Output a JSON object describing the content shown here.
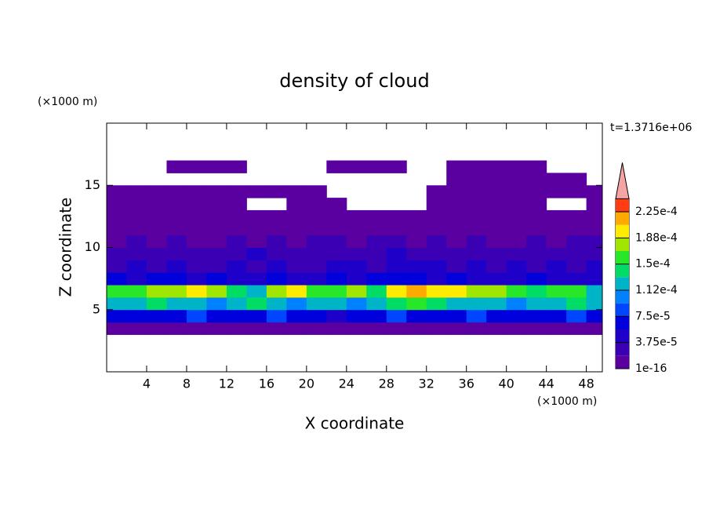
{
  "chart_data": {
    "type": "contour",
    "title": "density of cloud",
    "time_label": "t=1.3716e+06",
    "x_label": "X coordinate",
    "y_label": "Z coordinate",
    "x_unit": "(×1000 m)",
    "y_unit": "(×1000 m)",
    "xlim": [
      0,
      49.6
    ],
    "ylim": [
      0,
      20
    ],
    "xticks": [
      4,
      8,
      12,
      16,
      20,
      24,
      28,
      32,
      36,
      40,
      44,
      48
    ],
    "yticks": [
      5,
      10,
      15
    ],
    "x_edges": [
      0,
      2,
      4,
      6,
      8,
      10,
      12,
      14,
      16,
      18,
      20,
      22,
      24,
      26,
      28,
      30,
      32,
      34,
      36,
      38,
      40,
      42,
      44,
      46,
      48,
      50
    ],
    "z_edges": [
      3,
      4,
      5,
      6,
      7,
      8,
      9,
      10,
      11,
      12,
      13,
      14,
      15,
      16,
      17
    ],
    "values": [
      [
        1e-05,
        1e-05,
        1e-05,
        1e-05,
        1e-05,
        1e-05,
        1e-05,
        1e-05,
        1e-05,
        1e-05,
        1e-05,
        1e-05,
        1e-05,
        1e-05,
        1e-05,
        1e-05,
        1e-05,
        1e-05,
        1e-05,
        1e-05,
        1e-05,
        1e-05,
        1e-05,
        1e-05,
        1e-05
      ],
      [
        7e-05,
        6e-05,
        7e-05,
        6e-05,
        8e-05,
        7e-05,
        6e-05,
        7e-05,
        8e-05,
        6e-05,
        7e-05,
        5e-05,
        6e-05,
        7e-05,
        8e-05,
        7e-05,
        6e-05,
        7e-05,
        8e-05,
        6e-05,
        7e-05,
        6e-05,
        7e-05,
        8e-05,
        7e-05
      ],
      [
        0.00013,
        0.00012,
        0.00014,
        0.00013,
        0.00012,
        0.00011,
        0.00013,
        0.00014,
        0.00012,
        0.00011,
        0.00013,
        0.00012,
        0.00011,
        0.00013,
        0.00014,
        0.00015,
        0.00014,
        0.00013,
        0.00012,
        0.00013,
        0.00011,
        0.00012,
        0.00013,
        0.00014,
        0.00012
      ],
      [
        0.00016,
        0.00015,
        0.00017,
        0.00018,
        0.00019,
        0.00017,
        0.00014,
        0.00013,
        0.00017,
        0.00019,
        0.00015,
        0.00016,
        0.00018,
        0.00014,
        0.00019,
        0.00022,
        0.0002,
        0.00019,
        0.00017,
        0.00018,
        0.00015,
        0.00014,
        0.00016,
        0.00015,
        0.00013
      ],
      [
        6e-05,
        5e-05,
        7e-05,
        6e-05,
        5e-05,
        6e-05,
        4e-05,
        5e-05,
        6e-05,
        5e-05,
        4e-05,
        6e-05,
        5e-05,
        6e-05,
        7e-05,
        6e-05,
        5e-05,
        6e-05,
        5e-05,
        4e-05,
        5e-05,
        6e-05,
        5e-05,
        4e-05,
        5e-05
      ],
      [
        3e-05,
        4e-05,
        3e-05,
        4e-05,
        3e-05,
        3e-05,
        4e-05,
        3e-05,
        4e-05,
        3e-05,
        3e-05,
        4e-05,
        4e-05,
        3e-05,
        4e-05,
        5e-05,
        4e-05,
        3e-05,
        4e-05,
        3e-05,
        4e-05,
        3e-05,
        4e-05,
        3e-05,
        4e-05
      ],
      [
        2e-05,
        3e-05,
        2e-05,
        3e-05,
        3e-05,
        2e-05,
        3e-05,
        4e-05,
        3e-05,
        2e-05,
        3e-05,
        3e-05,
        2e-05,
        3e-05,
        4e-05,
        3e-05,
        3e-05,
        2e-05,
        3e-05,
        3e-05,
        2e-05,
        3e-05,
        2e-05,
        3e-05,
        3e-05
      ],
      [
        1.5e-05,
        2e-05,
        1.5e-05,
        2e-05,
        1.5e-05,
        1.5e-05,
        2e-05,
        1.5e-05,
        2e-05,
        1.5e-05,
        2e-05,
        2e-05,
        1.5e-05,
        2e-05,
        2e-05,
        1.5e-05,
        2e-05,
        1.5e-05,
        2e-05,
        1.5e-05,
        1.5e-05,
        2e-05,
        1.5e-05,
        2e-05,
        2e-05
      ],
      [
        1e-05,
        1e-05,
        1e-05,
        1e-05,
        1e-05,
        1e-05,
        1e-05,
        1e-05,
        1e-05,
        1e-05,
        1e-05,
        1e-05,
        1e-05,
        1e-05,
        1e-05,
        1e-05,
        1e-05,
        1e-05,
        1e-05,
        1e-05,
        1e-05,
        1e-05,
        1e-05,
        1e-05,
        1e-05
      ],
      [
        1e-05,
        1e-05,
        1e-05,
        1e-05,
        1e-05,
        1e-05,
        1e-05,
        1e-05,
        1e-05,
        1e-05,
        1e-05,
        1e-05,
        1e-05,
        1e-05,
        1e-05,
        1e-05,
        1e-05,
        1e-05,
        1e-05,
        1e-05,
        1e-05,
        1e-05,
        1e-05,
        1e-05,
        1e-05
      ],
      [
        1e-05,
        1e-05,
        1e-05,
        1e-05,
        1e-05,
        1e-05,
        1e-05,
        null,
        null,
        1e-05,
        1e-05,
        1e-05,
        null,
        null,
        null,
        null,
        1e-05,
        1e-05,
        1e-05,
        1e-05,
        1e-05,
        1e-05,
        null,
        null,
        1e-05
      ],
      [
        1e-05,
        1e-05,
        1e-05,
        1e-05,
        1e-05,
        1e-05,
        1e-05,
        1e-05,
        1e-05,
        1e-05,
        1e-05,
        null,
        null,
        null,
        null,
        null,
        1e-05,
        1e-05,
        1e-05,
        1e-05,
        1e-05,
        1e-05,
        1e-05,
        1e-05,
        1e-05
      ],
      [
        null,
        null,
        null,
        null,
        null,
        null,
        null,
        null,
        null,
        null,
        null,
        null,
        null,
        null,
        null,
        null,
        null,
        1e-05,
        1e-05,
        1e-05,
        1e-05,
        1e-05,
        1e-05,
        1e-05,
        null
      ],
      [
        null,
        null,
        null,
        1e-05,
        1e-05,
        1e-05,
        1e-05,
        null,
        null,
        null,
        null,
        1e-05,
        1e-05,
        1e-05,
        1e-05,
        null,
        null,
        1e-05,
        1e-05,
        1e-05,
        1e-05,
        1e-05,
        null,
        null,
        null
      ]
    ],
    "levels": [
      1e-16,
      1.875e-05,
      3.75e-05,
      5.625e-05,
      7.5e-05,
      9.375e-05,
      0.0001125,
      0.00013125,
      0.00015,
      0.00016875,
      0.0001875,
      0.00020625,
      0.000225,
      0.00024375
    ],
    "colors": [
      "#5a00a0",
      "#3c00b4",
      "#1e00c8",
      "#0000dc",
      "#0046ff",
      "#0082ff",
      "#00b4c8",
      "#00dc64",
      "#28e628",
      "#a0e600",
      "#ffeb00",
      "#ffaa00",
      "#ff3c14"
    ],
    "extend_color": "#f4a4a4",
    "colorbar_ticks": [
      {
        "value": 1e-16,
        "label": "1e-16"
      },
      {
        "value": 3.75e-05,
        "label": "3.75e-5"
      },
      {
        "value": 7.5e-05,
        "label": "7.5e-5"
      },
      {
        "value": 0.0001125,
        "label": "1.12e-4"
      },
      {
        "value": 0.00015,
        "label": "1.5e-4"
      },
      {
        "value": 0.0001875,
        "label": "1.88e-4"
      },
      {
        "value": 0.000225,
        "label": "2.25e-4"
      }
    ]
  }
}
